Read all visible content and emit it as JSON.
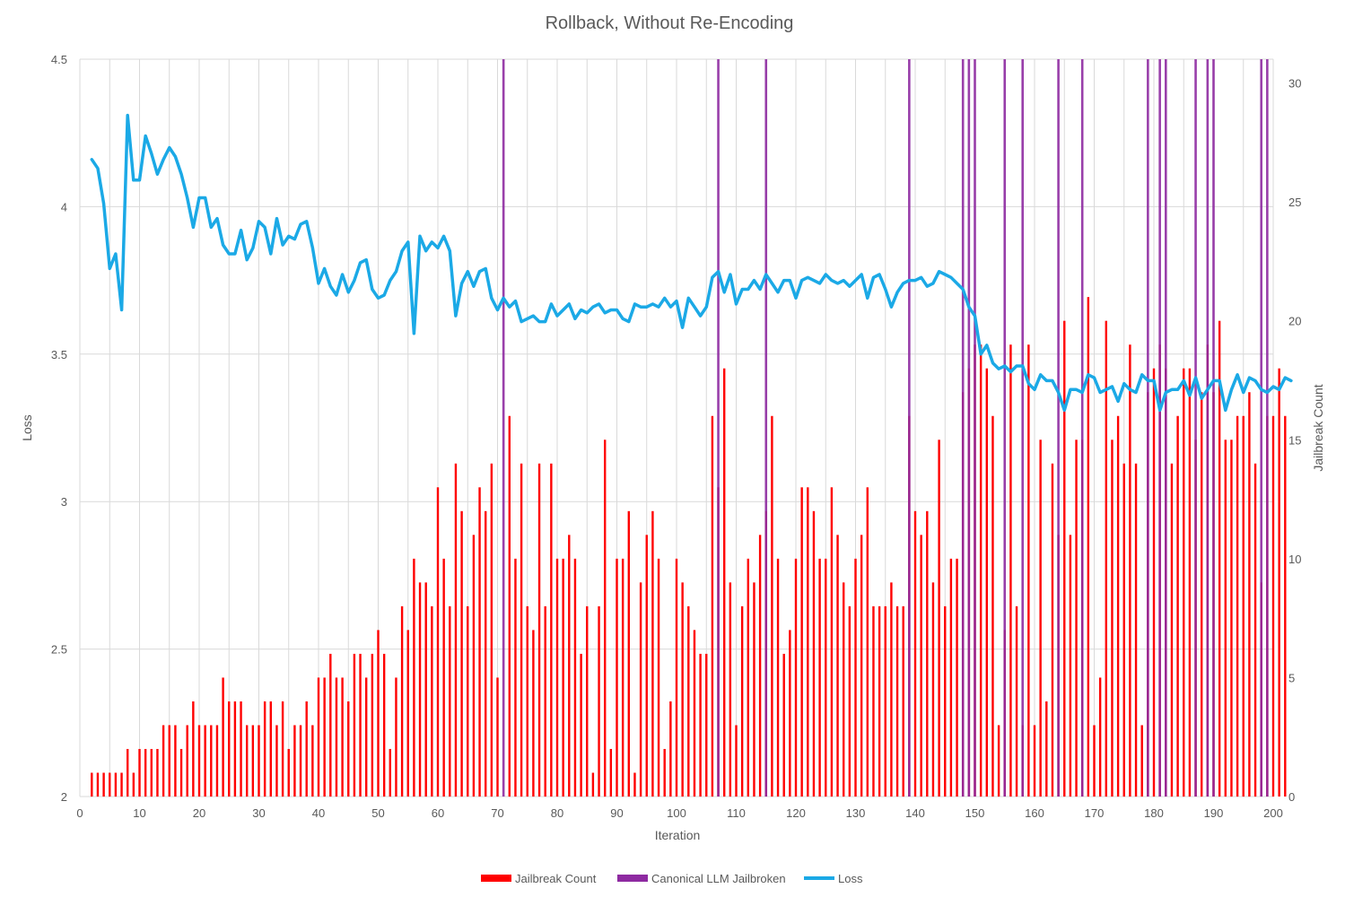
{
  "chart_data": {
    "type": "bar",
    "title": "Rollback, Without Re-Encoding",
    "xlabel": "Iteration",
    "ylabel": "Loss",
    "y2label": "Jailbreak Count",
    "xlim": [
      0,
      200
    ],
    "ylim": [
      2,
      4.5
    ],
    "y2lim": [
      0,
      31
    ],
    "xticks": [
      0,
      10,
      20,
      30,
      40,
      50,
      60,
      70,
      80,
      90,
      100,
      110,
      120,
      130,
      140,
      150,
      160,
      170,
      180,
      190,
      200
    ],
    "yticks": [
      "2",
      "2.5",
      "3",
      "3.5",
      "4",
      "4.5"
    ],
    "y2ticks": [
      "0",
      "5",
      "10",
      "15",
      "20",
      "25",
      "30"
    ],
    "grid": true,
    "legend_position": "bottom",
    "colors": {
      "jailbreak": "#ff0000",
      "canonical": "#8e2aa1",
      "loss": "#1ba9e6",
      "grid": "#d9d9d9",
      "text": "#595959"
    },
    "series": [
      {
        "name": "Jailbreak Count",
        "axis": "secondary",
        "style": "bar",
        "x_start": 1,
        "values": [
          0,
          1,
          1,
          1,
          1,
          1,
          1,
          2,
          1,
          2,
          2,
          2,
          2,
          3,
          3,
          3,
          2,
          3,
          4,
          3,
          3,
          3,
          3,
          5,
          4,
          4,
          4,
          3,
          3,
          3,
          4,
          4,
          3,
          4,
          2,
          3,
          3,
          4,
          3,
          5,
          5,
          6,
          5,
          5,
          4,
          6,
          6,
          5,
          6,
          7,
          6,
          2,
          5,
          8,
          7,
          10,
          9,
          9,
          8,
          13,
          10,
          8,
          14,
          12,
          8,
          11,
          13,
          12,
          14,
          5,
          0,
          16,
          10,
          14,
          8,
          7,
          14,
          8,
          14,
          10,
          10,
          11,
          10,
          6,
          8,
          1,
          8,
          15,
          2,
          10,
          10,
          12,
          1,
          9,
          11,
          12,
          10,
          2,
          4,
          10,
          9,
          8,
          7,
          6,
          6,
          16,
          13,
          18,
          9,
          3,
          8,
          10,
          9,
          11,
          12,
          16,
          10,
          6,
          7,
          10,
          13,
          13,
          12,
          10,
          10,
          13,
          11,
          9,
          8,
          10,
          11,
          13,
          8,
          8,
          8,
          9,
          8,
          8,
          16,
          12,
          11,
          12,
          9,
          15,
          8,
          10,
          10,
          17,
          18,
          19,
          19,
          18,
          16,
          3,
          7,
          19,
          8,
          3,
          19,
          3,
          15,
          4,
          14,
          11,
          20,
          11,
          15,
          15,
          21,
          3,
          5,
          20,
          15,
          16,
          14,
          19,
          14,
          3,
          17,
          18,
          19,
          18,
          14,
          16,
          18,
          18,
          15,
          17,
          19,
          17,
          20,
          15,
          15,
          16,
          16,
          17,
          14,
          9,
          16,
          16,
          18,
          16
        ]
      },
      {
        "name": "Canonical LLM Jailbroken",
        "axis": "secondary",
        "style": "spike",
        "iterations": [
          71,
          107,
          115,
          139,
          148,
          149,
          150,
          155,
          158,
          164,
          168,
          179,
          181,
          182,
          187,
          189,
          190,
          198,
          199
        ]
      },
      {
        "name": "Loss",
        "axis": "primary",
        "style": "line",
        "x_start": 2,
        "values": [
          4.16,
          4.13,
          4.01,
          3.79,
          3.84,
          3.65,
          4.31,
          4.09,
          4.09,
          4.24,
          4.18,
          4.11,
          4.16,
          4.2,
          4.17,
          4.11,
          4.03,
          3.93,
          4.03,
          4.03,
          3.93,
          3.96,
          3.87,
          3.84,
          3.84,
          3.92,
          3.82,
          3.86,
          3.95,
          3.93,
          3.84,
          3.96,
          3.87,
          3.9,
          3.89,
          3.94,
          3.95,
          3.86,
          3.74,
          3.79,
          3.73,
          3.7,
          3.77,
          3.71,
          3.75,
          3.81,
          3.82,
          3.72,
          3.69,
          3.7,
          3.75,
          3.78,
          3.85,
          3.88,
          3.57,
          3.9,
          3.85,
          3.88,
          3.86,
          3.9,
          3.85,
          3.63,
          3.74,
          3.78,
          3.73,
          3.78,
          3.79,
          3.69,
          3.65,
          3.69,
          3.66,
          3.68,
          3.61,
          3.62,
          3.63,
          3.61,
          3.61,
          3.67,
          3.63,
          3.65,
          3.67,
          3.62,
          3.65,
          3.64,
          3.66,
          3.67,
          3.64,
          3.65,
          3.65,
          3.62,
          3.61,
          3.67,
          3.66,
          3.66,
          3.67,
          3.66,
          3.69,
          3.66,
          3.68,
          3.59,
          3.69,
          3.66,
          3.63,
          3.66,
          3.76,
          3.78,
          3.71,
          3.77,
          3.67,
          3.72,
          3.72,
          3.75,
          3.72,
          3.77,
          3.74,
          3.71,
          3.75,
          3.75,
          3.69,
          3.75,
          3.76,
          3.75,
          3.74,
          3.77,
          3.75,
          3.74,
          3.75,
          3.73,
          3.75,
          3.77,
          3.69,
          3.76,
          3.77,
          3.72,
          3.66,
          3.71,
          3.74,
          3.75,
          3.75,
          3.76,
          3.73,
          3.74,
          3.78,
          3.77,
          3.76,
          3.74,
          3.72,
          3.66,
          3.63,
          3.5,
          3.53,
          3.47,
          3.45,
          3.46,
          3.44,
          3.46,
          3.46,
          3.4,
          3.38,
          3.43,
          3.41,
          3.41,
          3.37,
          3.31,
          3.38,
          3.38,
          3.37,
          3.43,
          3.42,
          3.37,
          3.38,
          3.39,
          3.34,
          3.4,
          3.38,
          3.37,
          3.43,
          3.41,
          3.41,
          3.31,
          3.37,
          3.38,
          3.38,
          3.41,
          3.36,
          3.42,
          3.35,
          3.38,
          3.41,
          3.41,
          3.31,
          3.38,
          3.43,
          3.37,
          3.42,
          3.41,
          3.38,
          3.37,
          3.39,
          3.38,
          3.42,
          3.41
        ]
      }
    ]
  }
}
